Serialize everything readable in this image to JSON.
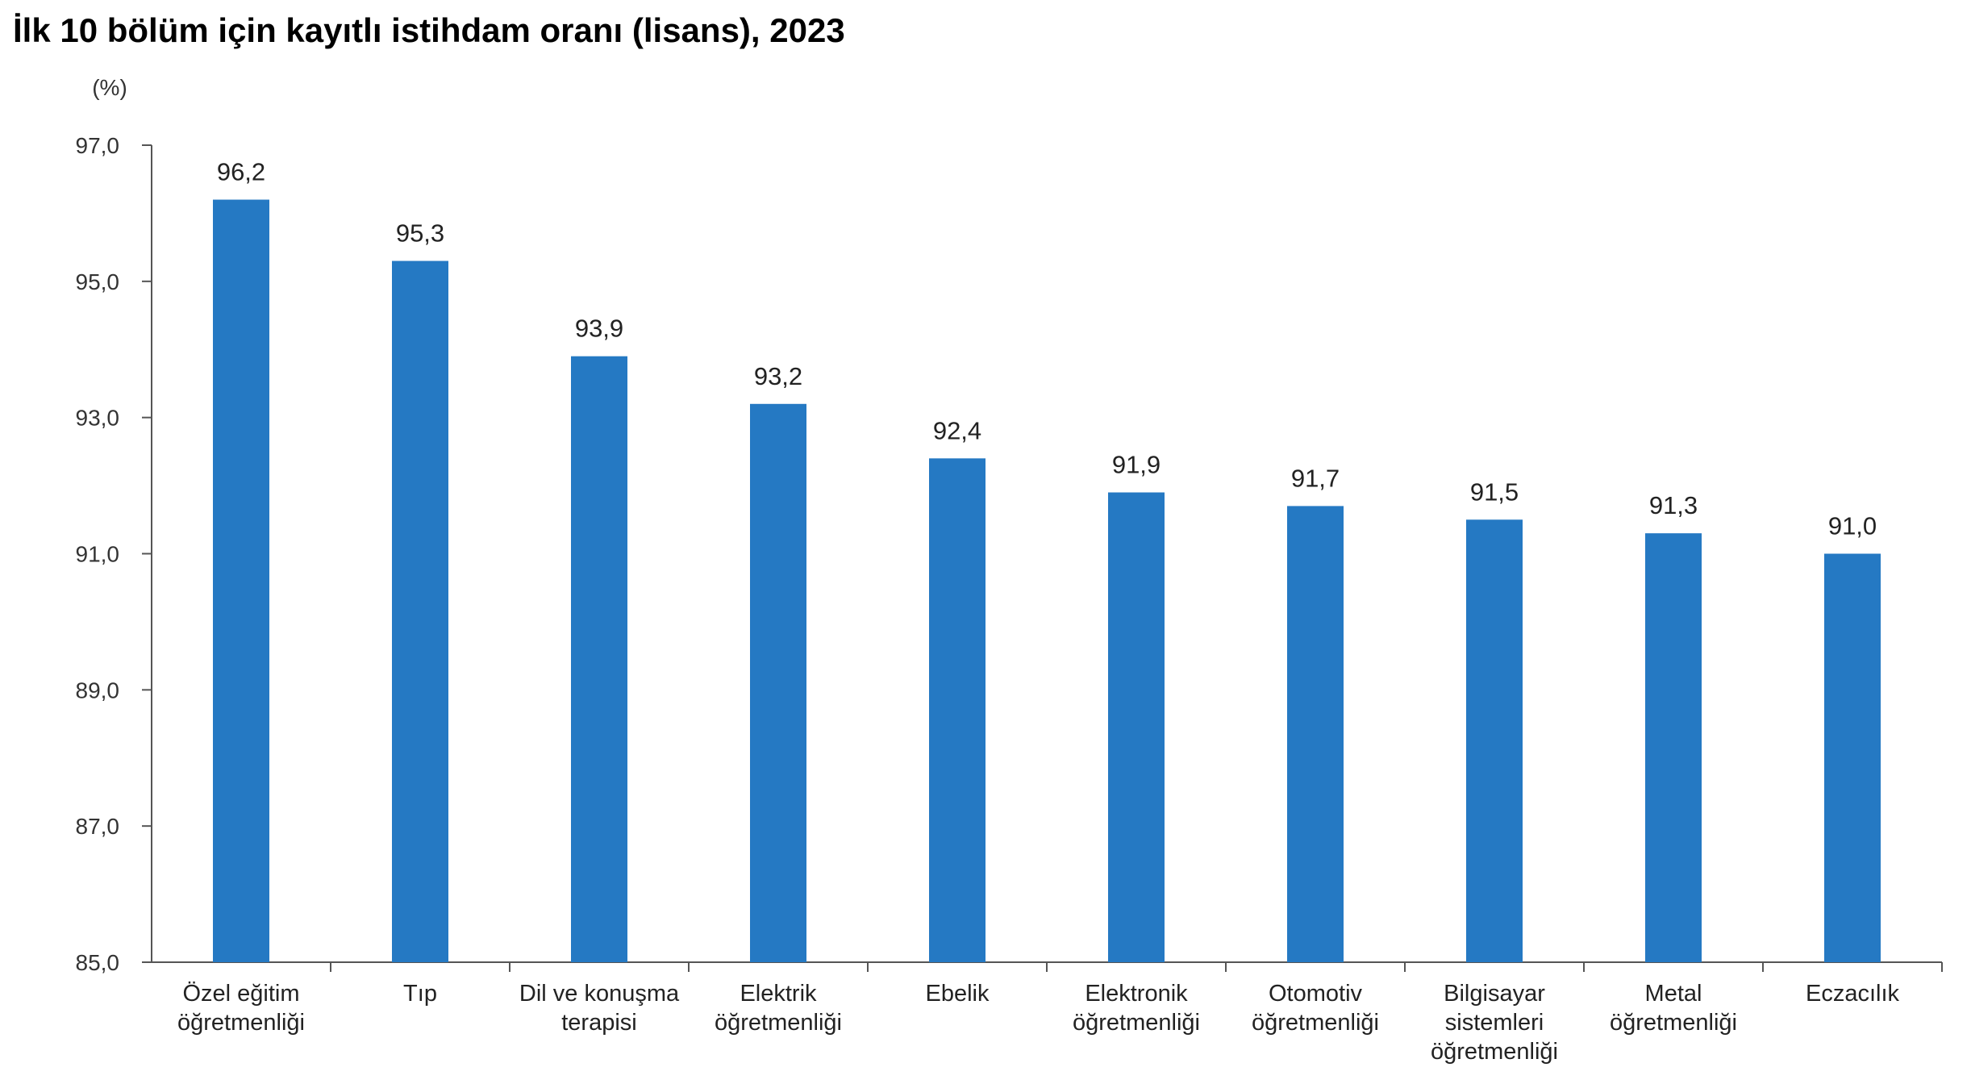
{
  "chart_data": {
    "type": "bar",
    "title": "İlk 10 bölüm için kayıtlı istihdam oranı (lisans), 2023",
    "ylabel": "(%)",
    "xlabel": "",
    "ylim": [
      85.0,
      97.0
    ],
    "yticks": [
      "85,0",
      "87,0",
      "89,0",
      "91,0",
      "93,0",
      "95,0",
      "97,0"
    ],
    "categories": [
      [
        "Özel eğitim",
        "öğretmenliği"
      ],
      [
        "Tıp"
      ],
      [
        "Dil ve konuşma",
        "terapisi"
      ],
      [
        "Elektrik",
        "öğretmenliği"
      ],
      [
        "Ebelik"
      ],
      [
        "Elektronik",
        "öğretmenliği"
      ],
      [
        "Otomotiv",
        "öğretmenliği"
      ],
      [
        "Bilgisayar",
        "sistemleri",
        "öğretmenliği"
      ],
      [
        "Metal",
        "öğretmenliği"
      ],
      [
        "Eczacılık"
      ]
    ],
    "values": [
      96.2,
      95.3,
      93.9,
      93.2,
      92.4,
      91.9,
      91.7,
      91.5,
      91.3,
      91.0
    ],
    "value_labels": [
      "96,2",
      "95,3",
      "93,9",
      "93,2",
      "92,4",
      "91,9",
      "91,7",
      "91,5",
      "91,3",
      "91,0"
    ],
    "bar_color": "#2579C3",
    "grid": false,
    "legend": "none"
  }
}
